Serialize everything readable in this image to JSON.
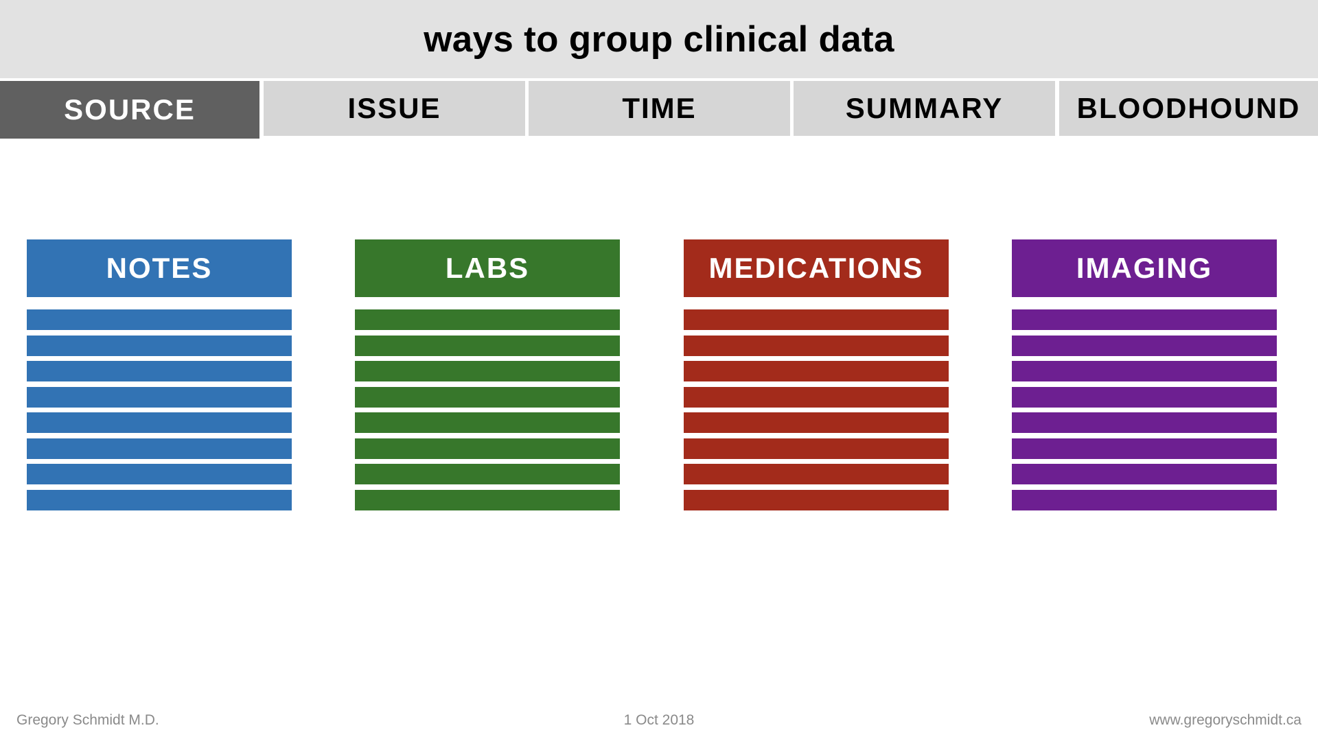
{
  "title": "ways to group clinical data",
  "tabs": [
    {
      "label": "SOURCE",
      "active": true
    },
    {
      "label": "ISSUE",
      "active": false
    },
    {
      "label": "TIME",
      "active": false
    },
    {
      "label": "SUMMARY",
      "active": false
    },
    {
      "label": "BLOODHOUND",
      "active": false
    }
  ],
  "columns": [
    {
      "label": "NOTES",
      "color": "#3273b4",
      "row_count": 8
    },
    {
      "label": "LABS",
      "color": "#37772b",
      "row_count": 8
    },
    {
      "label": "MEDICATIONS",
      "color": "#a32b1b",
      "row_count": 8
    },
    {
      "label": "IMAGING",
      "color": "#6d1f91",
      "row_count": 8
    }
  ],
  "footer": {
    "author": "Gregory Schmidt M.D.",
    "date": "1 Oct 2018",
    "website": "www.gregoryschmidt.ca"
  },
  "colors": {
    "title_bg": "#e2e2e2",
    "tab_bg": "#d6d6d6",
    "tab_active_bg": "#606060"
  }
}
